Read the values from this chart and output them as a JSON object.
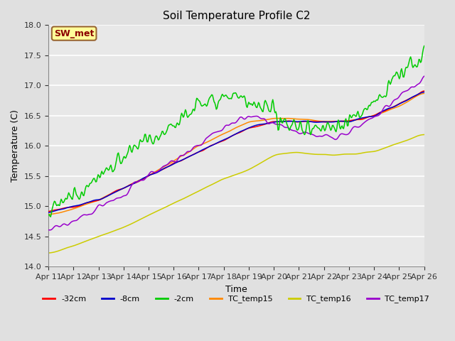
{
  "title": "Soil Temperature Profile C2",
  "xlabel": "Time",
  "ylabel": "Temperature (C)",
  "ylim": [
    14.0,
    18.0
  ],
  "yticks": [
    14.0,
    14.5,
    15.0,
    15.5,
    16.0,
    16.5,
    17.0,
    17.5,
    18.0
  ],
  "background_color": "#e0e0e0",
  "plot_bg_color": "#e8e8e8",
  "grid_color": "#ffffff",
  "annotation_text": "SW_met",
  "annotation_color": "#8B0000",
  "annotation_bg": "#ffff99",
  "annotation_border": "#996633",
  "series_colors": {
    "neg32cm": "#ff0000",
    "neg8cm": "#0000cc",
    "neg2cm": "#00cc00",
    "TC_temp15": "#ff8800",
    "TC_temp16": "#cccc00",
    "TC_temp17": "#9900cc"
  },
  "legend_labels": [
    "-32cm",
    "-8cm",
    "-2cm",
    "TC_temp15",
    "TC_temp16",
    "TC_temp17"
  ],
  "n_points": 500,
  "x_start": 0,
  "x_end": 15,
  "xtick_positions": [
    0,
    1,
    2,
    3,
    4,
    5,
    6,
    7,
    8,
    9,
    10,
    11,
    12,
    13,
    14,
    15
  ],
  "xtick_labels": [
    "Apr 11",
    "Apr 12",
    "Apr 13",
    "Apr 14",
    "Apr 15",
    "Apr 16",
    "Apr 17",
    "Apr 18",
    "Apr 19",
    "Apr 20",
    "Apr 21",
    "Apr 22",
    "Apr 23",
    "Apr 24",
    "Apr 25",
    "Apr 26"
  ]
}
